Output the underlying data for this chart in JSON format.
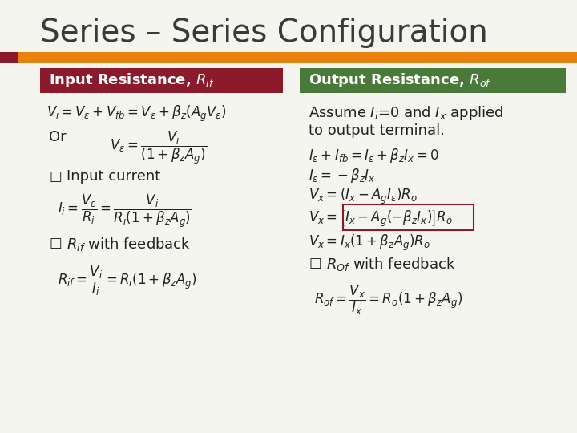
{
  "title": "Series – Series Configuration",
  "title_fontsize": 28,
  "title_color": "#3a3a3a",
  "bg_color": "#f5f5f0",
  "orange_bar_color": "#e8820c",
  "dark_red_color": "#8b1a2a",
  "left_header_color": "#8b1a2a",
  "right_header_color": "#4a7a3a",
  "left_header_text": "Input Resistance, $R_{if}$",
  "right_header_text": "Output Resistance, $R_{of}$",
  "header_text_color": "#ffffff",
  "header_fontsize": 13,
  "eq_fontsize": 12
}
